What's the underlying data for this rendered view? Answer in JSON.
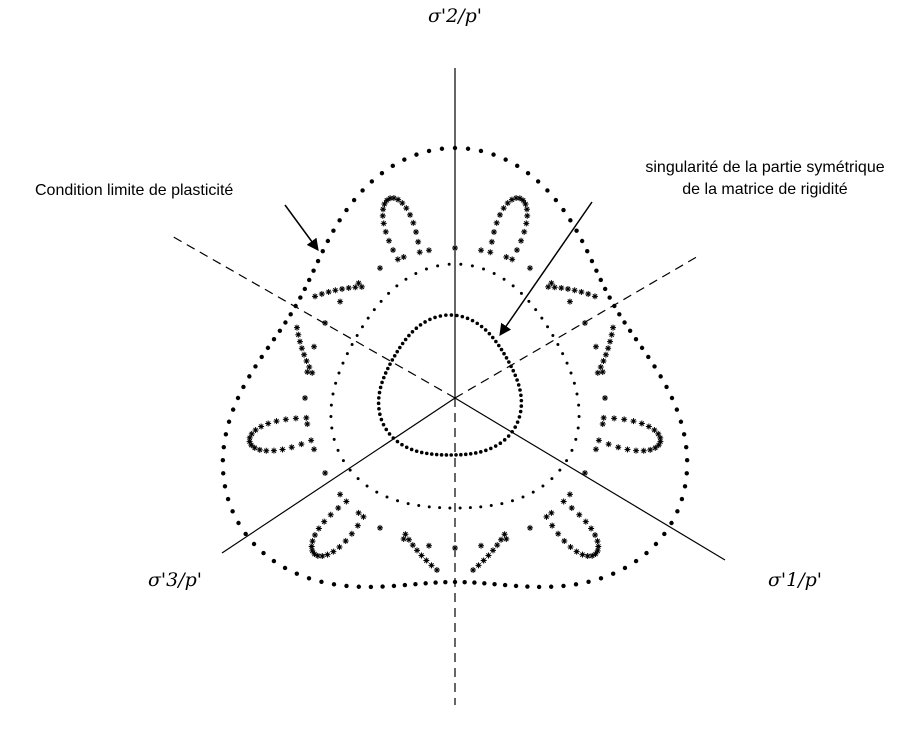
{
  "axes": {
    "sigma2": "σ'2/p'",
    "sigma3": "σ'3/p'",
    "sigma1": "σ'1/p'"
  },
  "annotations": {
    "yield": "Condition limite de plasticité",
    "singularity": [
      "singularité de la partie symétrique",
      "de la matrice de rigidité"
    ]
  }
}
